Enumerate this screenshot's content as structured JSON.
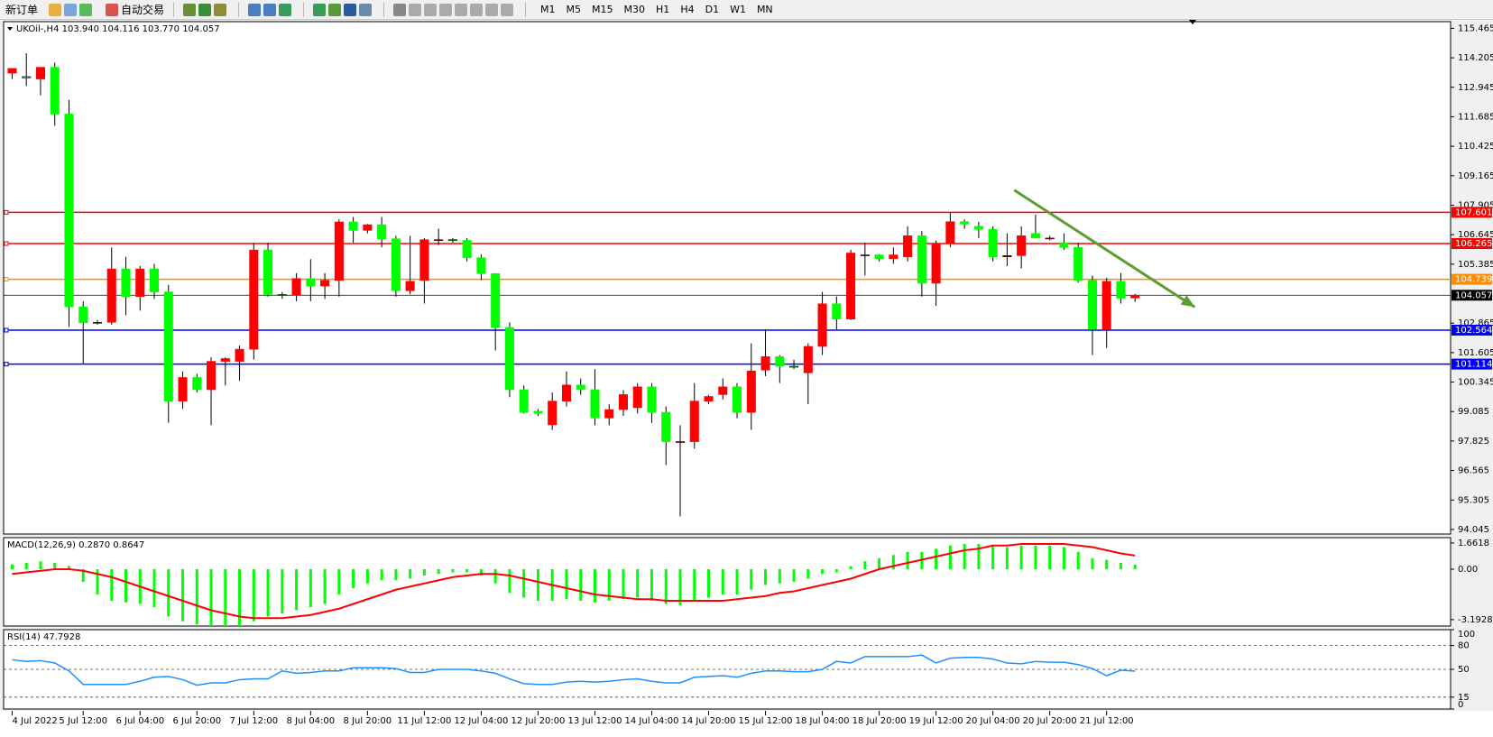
{
  "toolbar": {
    "new_order": "新订单",
    "auto_trading": "自动交易",
    "timeframes": [
      "M1",
      "M5",
      "M15",
      "M30",
      "H1",
      "H4",
      "D1",
      "W1",
      "MN"
    ]
  },
  "chart_data": [
    {
      "type": "candlestick",
      "title": "UKOil-,H4  103.940 104.116 103.770 104.057",
      "bull_color": "#ff0000",
      "bear_color": "#00ff00",
      "open": [
        113.55,
        113.4,
        113.3,
        113.8,
        111.8,
        103.56,
        102.88,
        102.9,
        105.18,
        104.0,
        105.18,
        104.2,
        99.53,
        100.54,
        100.02,
        101.23,
        101.23,
        101.75,
        105.99,
        104.09,
        104.05,
        104.77,
        104.45,
        104.69,
        107.19,
        106.83,
        107.07,
        106.47,
        104.25,
        104.69,
        106.43,
        106.43,
        106.4,
        105.66,
        104.98,
        102.68,
        100.02,
        99.1,
        98.52,
        99.53,
        100.22,
        100.02,
        98.81,
        99.17,
        99.25,
        100.14,
        99.05,
        97.8,
        97.8,
        99.53,
        99.81,
        100.14,
        99.05,
        100.86,
        101.43,
        101.02,
        100.74,
        101.87,
        103.69,
        103.04,
        105.78,
        105.78,
        105.62,
        105.7,
        106.6,
        104.57,
        106.27,
        107.2,
        107.0,
        106.87,
        105.7,
        105.75,
        106.7,
        106.5,
        106.3,
        106.1,
        104.69,
        102.6,
        104.65,
        103.94
      ],
      "high": [
        113.75,
        114.4,
        113.8,
        114.0,
        112.4,
        103.8,
        103.0,
        106.1,
        105.7,
        105.3,
        105.4,
        104.5,
        100.8,
        100.7,
        101.4,
        101.4,
        101.9,
        106.3,
        106.3,
        104.2,
        105.0,
        105.6,
        105.0,
        107.3,
        107.4,
        107.1,
        107.4,
        106.6,
        106.6,
        106.5,
        106.9,
        106.5,
        106.5,
        105.8,
        105.0,
        102.9,
        100.2,
        99.2,
        99.9,
        100.8,
        100.5,
        100.9,
        99.4,
        100.0,
        100.3,
        100.3,
        99.3,
        98.5,
        100.3,
        99.8,
        100.5,
        100.3,
        102.0,
        102.6,
        101.5,
        101.3,
        102.0,
        104.2,
        104.0,
        106.0,
        106.3,
        105.8,
        106.1,
        107.0,
        106.8,
        106.4,
        107.6,
        107.3,
        107.2,
        107.0,
        106.7,
        107.0,
        107.5,
        106.6,
        106.7,
        106.3,
        104.9,
        104.8,
        105.0,
        104.116
      ],
      "low": [
        113.3,
        113.0,
        112.6,
        111.3,
        102.7,
        101.1,
        102.8,
        102.8,
        103.2,
        103.4,
        103.9,
        98.6,
        99.2,
        99.9,
        98.5,
        100.2,
        100.4,
        101.3,
        104.0,
        103.9,
        103.8,
        103.8,
        103.9,
        104.0,
        106.3,
        106.7,
        106.1,
        104.0,
        104.1,
        103.7,
        106.2,
        106.3,
        105.5,
        104.7,
        101.7,
        99.7,
        99.0,
        98.9,
        98.3,
        99.3,
        99.8,
        98.5,
        98.5,
        98.9,
        99.0,
        98.6,
        96.8,
        94.6,
        97.5,
        99.4,
        99.6,
        98.8,
        98.3,
        100.6,
        100.3,
        100.9,
        99.4,
        101.5,
        102.6,
        103.0,
        104.9,
        105.5,
        105.4,
        105.5,
        104.0,
        103.6,
        106.1,
        106.9,
        106.5,
        105.5,
        105.3,
        105.2,
        106.5,
        106.4,
        106.0,
        104.6,
        101.5,
        101.8,
        103.7,
        103.77
      ],
      "close": [
        113.75,
        113.35,
        113.8,
        111.8,
        103.56,
        102.88,
        102.9,
        105.18,
        104.0,
        105.18,
        104.2,
        99.53,
        100.54,
        100.02,
        101.23,
        101.35,
        101.75,
        105.99,
        104.09,
        104.05,
        104.77,
        104.45,
        104.69,
        107.19,
        106.83,
        107.07,
        106.47,
        104.25,
        104.65,
        106.43,
        106.43,
        106.4,
        105.66,
        104.98,
        102.68,
        100.02,
        99.05,
        99.01,
        99.53,
        100.22,
        100.02,
        98.81,
        99.17,
        99.81,
        100.14,
        99.05,
        97.8,
        97.8,
        99.53,
        99.73,
        100.14,
        99.05,
        100.82,
        101.43,
        101.02,
        101.0,
        101.87,
        103.69,
        103.04,
        105.86,
        105.78,
        105.62,
        105.78,
        106.6,
        104.57,
        106.27,
        107.2,
        107.1,
        106.87,
        105.7,
        105.75,
        106.6,
        106.5,
        106.5,
        106.1,
        104.69,
        102.6,
        104.65,
        103.93,
        104.057
      ],
      "xlim": [
        -0.6,
        101.2
      ],
      "ylim": [
        93.85,
        115.75
      ],
      "yticks": [
        115.465,
        114.205,
        112.945,
        111.685,
        110.425,
        109.165,
        107.905,
        106.645,
        105.385,
        102.865,
        101.605,
        100.345,
        99.085,
        97.825,
        96.565,
        95.305,
        94.045
      ],
      "xticks": [
        {
          "value": 0,
          "label": "4 Jul 2022"
        },
        {
          "value": 5,
          "label": "5 Jul 12:00"
        },
        {
          "value": 9,
          "label": "6 Jul 04:00"
        },
        {
          "value": 13,
          "label": "6 Jul 20:00"
        },
        {
          "value": 17,
          "label": "7 Jul 12:00"
        },
        {
          "value": 21,
          "label": "8 Jul 04:00"
        },
        {
          "value": 25,
          "label": "8 Jul 20:00"
        },
        {
          "value": 29,
          "label": "11 Jul 12:00"
        },
        {
          "value": 33,
          "label": "12 Jul 04:00"
        },
        {
          "value": 37,
          "label": "12 Jul 20:00"
        },
        {
          "value": 41,
          "label": "13 Jul 12:00"
        },
        {
          "value": 45,
          "label": "14 Jul 04:00"
        },
        {
          "value": 49,
          "label": "14 Jul 20:00"
        },
        {
          "value": 53,
          "label": "15 Jul 12:00"
        },
        {
          "value": 57,
          "label": "18 Jul 04:00"
        },
        {
          "value": 61,
          "label": "18 Jul 20:00"
        },
        {
          "value": 65,
          "label": "19 Jul 12:00"
        },
        {
          "value": 69,
          "label": "20 Jul 04:00"
        },
        {
          "value": 73,
          "label": "20 Jul 20:00"
        },
        {
          "value": 77,
          "label": "21 Jul 12:00"
        }
      ],
      "levels": [
        {
          "value": 107.601,
          "color": "#ff0000"
        },
        {
          "value": 106.265,
          "color": "#ff0000"
        },
        {
          "value": 104.739,
          "color": "#ff8c00"
        },
        {
          "value": 102.564,
          "color": "#0000ff"
        },
        {
          "value": 101.114,
          "color": "#0000ff"
        }
      ],
      "current_price": 104.057,
      "trend_arrow": {
        "color": "#5a9e2f",
        "x": [
          70.5,
          83.2
        ],
        "y": [
          108.55,
          103.55
        ]
      }
    },
    {
      "type": "macd",
      "title": "MACD(12,26,9) 0.2870 0.8647",
      "ylim": [
        -3.6,
        2.0
      ],
      "yticks": [
        1.6618,
        {
          "value": 0,
          "label": "0.00"
        },
        -3.1928
      ],
      "histogram": {
        "color": "#00ff00",
        "values": [
          0.3,
          0.4,
          0.5,
          0.4,
          0.2,
          -0.8,
          -1.6,
          -2.0,
          -2.1,
          -2.2,
          -2.4,
          -3.0,
          -3.3,
          -3.5,
          -3.6,
          -3.6,
          -3.6,
          -3.3,
          -3.0,
          -2.8,
          -2.6,
          -2.4,
          -2.2,
          -1.6,
          -1.2,
          -0.9,
          -0.7,
          -0.7,
          -0.6,
          -0.4,
          -0.3,
          -0.2,
          -0.2,
          -0.4,
          -0.9,
          -1.5,
          -1.8,
          -2.0,
          -2.0,
          -1.9,
          -2.0,
          -2.1,
          -2.0,
          -1.9,
          -1.8,
          -2.0,
          -2.2,
          -2.3,
          -2.0,
          -1.8,
          -1.6,
          -1.6,
          -1.3,
          -1.0,
          -0.9,
          -0.8,
          -0.6,
          -0.3,
          -0.2,
          0.2,
          0.5,
          0.7,
          0.9,
          1.1,
          1.1,
          1.3,
          1.5,
          1.6,
          1.6,
          1.5,
          1.4,
          1.5,
          1.5,
          1.5,
          1.4,
          1.1,
          0.7,
          0.6,
          0.4,
          0.287
        ]
      },
      "signal": {
        "color": "#ff0000",
        "values": [
          -0.3,
          -0.2,
          -0.1,
          0.0,
          0.0,
          -0.1,
          -0.3,
          -0.5,
          -0.8,
          -1.1,
          -1.4,
          -1.7,
          -2.0,
          -2.3,
          -2.6,
          -2.8,
          -3.0,
          -3.1,
          -3.1,
          -3.1,
          -3.0,
          -2.9,
          -2.7,
          -2.5,
          -2.2,
          -1.9,
          -1.6,
          -1.3,
          -1.1,
          -0.9,
          -0.7,
          -0.5,
          -0.4,
          -0.3,
          -0.3,
          -0.4,
          -0.6,
          -0.8,
          -1.0,
          -1.2,
          -1.4,
          -1.6,
          -1.7,
          -1.8,
          -1.9,
          -1.9,
          -2.0,
          -2.0,
          -2.0,
          -2.0,
          -2.0,
          -1.9,
          -1.8,
          -1.7,
          -1.5,
          -1.4,
          -1.2,
          -1.0,
          -0.8,
          -0.6,
          -0.3,
          0.0,
          0.2,
          0.4,
          0.6,
          0.8,
          1.0,
          1.2,
          1.3,
          1.5,
          1.5,
          1.6,
          1.6,
          1.6,
          1.6,
          1.5,
          1.4,
          1.2,
          1.0,
          0.8647
        ]
      }
    },
    {
      "type": "rsi",
      "title": "RSI(14) 47.7928",
      "color": "#1e90ff",
      "ylim": [
        0,
        100
      ],
      "yticks": [
        100,
        80,
        50,
        15,
        0
      ],
      "dashed_levels": [
        80,
        50,
        15
      ],
      "values": [
        62,
        60,
        61,
        58,
        48,
        31,
        31,
        31,
        31,
        35,
        40,
        41,
        37,
        30,
        33,
        33,
        37,
        38,
        38,
        48,
        45,
        46,
        48,
        48,
        52,
        52,
        52,
        51,
        46,
        46,
        50,
        50,
        50,
        48,
        45,
        38,
        32,
        31,
        31,
        34,
        35,
        34,
        35,
        37,
        38,
        35,
        33,
        33,
        40,
        41,
        42,
        40,
        45,
        48,
        48,
        47,
        47,
        50,
        60,
        58,
        66,
        66,
        66,
        66,
        68,
        58,
        64,
        65,
        65,
        63,
        58,
        57,
        60,
        59,
        59,
        56,
        51,
        42,
        49,
        47.7928
      ]
    }
  ]
}
